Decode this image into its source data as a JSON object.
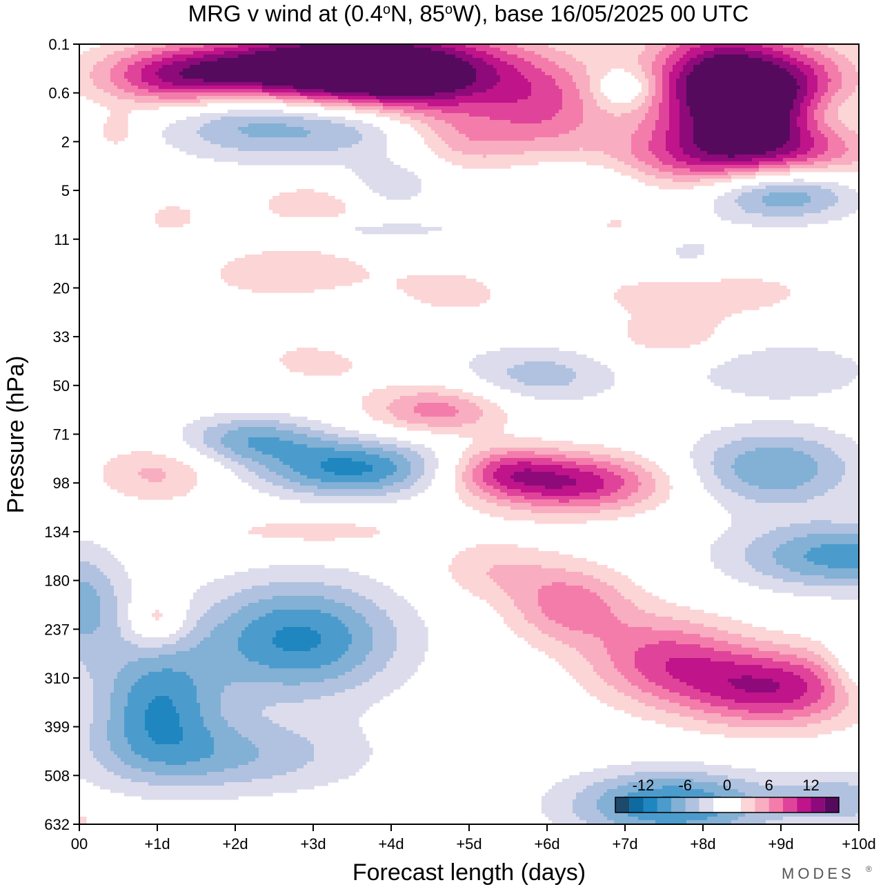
{
  "chart_data": {
    "type": "heatmap",
    "title_parts": {
      "pre": "MRG v wind at (0.4",
      "deg1": "o",
      "mid": "N, 85",
      "deg2": "o",
      "post": "W),  base 16/05/2025  00 UTC"
    },
    "xlabel": "Forecast length (days)",
    "ylabel": "Pressure (hPa)",
    "x_ticks": [
      {
        "value": 0,
        "label": "00"
      },
      {
        "value": 1,
        "label": "+1d"
      },
      {
        "value": 2,
        "label": "+2d"
      },
      {
        "value": 3,
        "label": "+3d"
      },
      {
        "value": 4,
        "label": "+4d"
      },
      {
        "value": 5,
        "label": "+5d"
      },
      {
        "value": 6,
        "label": "+6d"
      },
      {
        "value": 7,
        "label": "+7d"
      },
      {
        "value": 8,
        "label": "+8d"
      },
      {
        "value": 9,
        "label": "+9d"
      },
      {
        "value": 10,
        "label": "+10d"
      }
    ],
    "y_ticks": [
      "0.1",
      "0.6",
      "2",
      "5",
      "11",
      "20",
      "33",
      "50",
      "71",
      "98",
      "134",
      "180",
      "237",
      "310",
      "399",
      "508",
      "632"
    ],
    "xlim": [
      0,
      10
    ],
    "colorbar": {
      "labels": [
        {
          "value": -12,
          "label": "-12"
        },
        {
          "value": -6,
          "label": "-6"
        },
        {
          "value": 0,
          "label": "0"
        },
        {
          "value": 6,
          "label": "6"
        },
        {
          "value": 12,
          "label": "12"
        }
      ],
      "bins": [
        {
          "min": -16,
          "max": -14,
          "color": "#1d4a6b"
        },
        {
          "min": -14,
          "max": -12,
          "color": "#0f6aa0"
        },
        {
          "min": -12,
          "max": -10,
          "color": "#1f86c0"
        },
        {
          "min": -10,
          "max": -8,
          "color": "#4b9ccc"
        },
        {
          "min": -8,
          "max": -6,
          "color": "#83b0d5"
        },
        {
          "min": -6,
          "max": -4,
          "color": "#b0c2df"
        },
        {
          "min": -4,
          "max": -2,
          "color": "#dcdcec"
        },
        {
          "min": -2,
          "max": 2,
          "color": "#ffffff"
        },
        {
          "min": 2,
          "max": 4,
          "color": "#fcd5d6"
        },
        {
          "min": 4,
          "max": 6,
          "color": "#f9adc0"
        },
        {
          "min": 6,
          "max": 8,
          "color": "#f47cab"
        },
        {
          "min": 8,
          "max": 10,
          "color": "#e0449a"
        },
        {
          "min": 10,
          "max": 12,
          "color": "#c0148a"
        },
        {
          "min": 12,
          "max": 14,
          "color": "#8e0a7a"
        },
        {
          "min": 14,
          "max": 16,
          "color": "#560a5e"
        }
      ]
    },
    "features": [
      {
        "x": 4.0,
        "level": 0.6,
        "sx": 1.8,
        "sy": 0.9,
        "amp": 16
      },
      {
        "x": 2.8,
        "level": 0.55,
        "sx": 1.8,
        "sy": 0.7,
        "amp": 12
      },
      {
        "x": 1.2,
        "level": 0.7,
        "sx": 1.0,
        "sy": 0.6,
        "amp": 8
      },
      {
        "x": 8.2,
        "level": 0.85,
        "sx": 0.9,
        "sy": 1.2,
        "amp": 16
      },
      {
        "x": 9.2,
        "level": 1.1,
        "sx": 0.9,
        "sy": 1.0,
        "amp": 12
      },
      {
        "x": 6.0,
        "level": 1.4,
        "sx": 0.8,
        "sy": 0.9,
        "amp": 6
      },
      {
        "x": 2.4,
        "level": 1.5,
        "sx": 1.3,
        "sy": 0.8,
        "amp": -9
      },
      {
        "x": 3.6,
        "level": 1.6,
        "sx": 0.8,
        "sy": 0.7,
        "amp": -4
      },
      {
        "x": 7.0,
        "level": 0.9,
        "sx": 0.4,
        "sy": 0.4,
        "amp": -5
      },
      {
        "x": 9.6,
        "level": 1.4,
        "sx": 0.6,
        "sy": 0.6,
        "amp": -6
      },
      {
        "x": 8.5,
        "level": 2.3,
        "sx": 1.6,
        "sy": 0.7,
        "amp": 11
      },
      {
        "x": 5.0,
        "level": 2.0,
        "sx": 0.7,
        "sy": 0.6,
        "amp": 4
      },
      {
        "x": 0.5,
        "level": 1.8,
        "sx": 0.3,
        "sy": 0.4,
        "amp": 3.5
      },
      {
        "x": 9.0,
        "level": 3.0,
        "sx": 1.0,
        "sy": 0.6,
        "amp": -10
      },
      {
        "x": 6.5,
        "level": 3.0,
        "sx": 0.8,
        "sy": 0.6,
        "amp": -3.5
      },
      {
        "x": 4.0,
        "level": 2.9,
        "sx": 0.6,
        "sy": 0.5,
        "amp": -3.5
      },
      {
        "x": 3.0,
        "level": 3.3,
        "sx": 0.8,
        "sy": 0.5,
        "amp": 3.5
      },
      {
        "x": 1.2,
        "level": 3.6,
        "sx": 0.4,
        "sy": 0.4,
        "amp": 3
      },
      {
        "x": 3.5,
        "level": 3.8,
        "sx": 1.8,
        "sy": 0.2,
        "amp": -3
      },
      {
        "x": 6.8,
        "level": 3.6,
        "sx": 0.8,
        "sy": 0.5,
        "amp": 3
      },
      {
        "x": 7.8,
        "level": 4.3,
        "sx": 0.6,
        "sy": 0.6,
        "amp": -2.5
      },
      {
        "x": 2.7,
        "level": 4.7,
        "sx": 1.2,
        "sy": 0.6,
        "amp": 3.5
      },
      {
        "x": 4.7,
        "level": 5.2,
        "sx": 0.8,
        "sy": 0.6,
        "amp": 3.5
      },
      {
        "x": 8.0,
        "level": 5.1,
        "sx": 1.5,
        "sy": 0.5,
        "amp": 3.5
      },
      {
        "x": 3.9,
        "level": 5.8,
        "sx": 1.2,
        "sy": 0.6,
        "amp": -3
      },
      {
        "x": 7.6,
        "level": 6.0,
        "sx": 0.8,
        "sy": 0.5,
        "amp": 3.5
      },
      {
        "x": 3.1,
        "level": 6.4,
        "sx": 0.9,
        "sy": 0.6,
        "amp": 3.2
      },
      {
        "x": 5.9,
        "level": 6.8,
        "sx": 1.0,
        "sy": 0.6,
        "amp": -5
      },
      {
        "x": 9.0,
        "level": 6.7,
        "sx": 1.2,
        "sy": 0.6,
        "amp": -4
      },
      {
        "x": 3.5,
        "level": 8.7,
        "sx": 1.2,
        "sy": 0.6,
        "amp": -10.5
      },
      {
        "x": 2.2,
        "level": 8.1,
        "sx": 0.9,
        "sy": 0.5,
        "amp": -7
      },
      {
        "x": 4.6,
        "level": 7.5,
        "sx": 0.9,
        "sy": 0.5,
        "amp": 7
      },
      {
        "x": 6.3,
        "level": 9.0,
        "sx": 1.2,
        "sy": 0.6,
        "amp": 11.5
      },
      {
        "x": 5.4,
        "level": 8.7,
        "sx": 0.7,
        "sy": 0.5,
        "amp": 6
      },
      {
        "x": 1.0,
        "level": 8.8,
        "sx": 0.8,
        "sy": 0.6,
        "amp": 4.5
      },
      {
        "x": 8.9,
        "level": 8.7,
        "sx": 1.1,
        "sy": 0.8,
        "amp": -8
      },
      {
        "x": 9.8,
        "level": 10.5,
        "sx": 1.4,
        "sy": 0.7,
        "amp": -9
      },
      {
        "x": 3.0,
        "level": 10.0,
        "sx": 1.6,
        "sy": 0.4,
        "amp": 3
      },
      {
        "x": 2.8,
        "level": 12.2,
        "sx": 1.3,
        "sy": 1.2,
        "amp": -10.5
      },
      {
        "x": 1.0,
        "level": 13.5,
        "sx": 0.8,
        "sy": 1.2,
        "amp": -9
      },
      {
        "x": 0.0,
        "level": 11.5,
        "sx": 0.6,
        "sy": 1.2,
        "amp": -7
      },
      {
        "x": 1.8,
        "level": 14.6,
        "sx": 1.8,
        "sy": 0.8,
        "amp": -6
      },
      {
        "x": 1.0,
        "level": 11.8,
        "sx": 0.35,
        "sy": 0.5,
        "amp": 5
      },
      {
        "x": 8.9,
        "level": 13.2,
        "sx": 1.2,
        "sy": 0.8,
        "amp": 11.5
      },
      {
        "x": 7.5,
        "level": 12.6,
        "sx": 1.0,
        "sy": 0.9,
        "amp": 8
      },
      {
        "x": 6.3,
        "level": 11.5,
        "sx": 0.8,
        "sy": 0.8,
        "amp": 7
      },
      {
        "x": 5.3,
        "level": 10.8,
        "sx": 0.8,
        "sy": 0.6,
        "amp": 3.5
      },
      {
        "x": 7.6,
        "level": 15.6,
        "sx": 1.3,
        "sy": 0.7,
        "amp": -10.5
      },
      {
        "x": 9.8,
        "level": 15.5,
        "sx": 0.8,
        "sy": 0.6,
        "amp": -5
      },
      {
        "x": 10.0,
        "level": 12.8,
        "sx": 0.4,
        "sy": 0.7,
        "amp": -4
      },
      {
        "x": 3.3,
        "level": 16.3,
        "sx": 0.9,
        "sy": 0.4,
        "amp": 3.5
      },
      {
        "x": 0.0,
        "level": 16.0,
        "sx": 0.2,
        "sy": 0.3,
        "amp": 3
      }
    ]
  },
  "brand": {
    "text": "MODES",
    "mark": "®"
  }
}
